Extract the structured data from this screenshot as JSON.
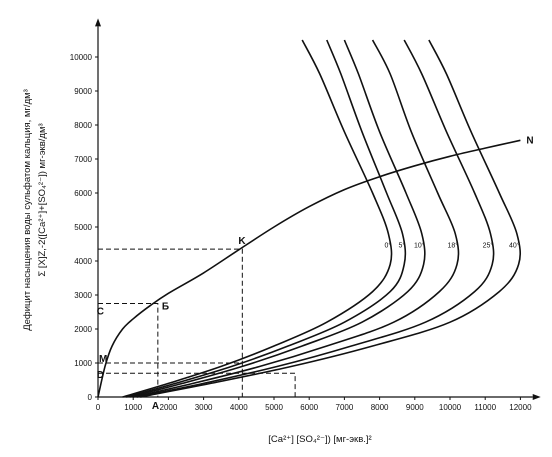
{
  "chart_data": {
    "type": "line",
    "title": "",
    "ylabel_line1": "Дефицит насыщения воды сульфатом кальция, мг/дм³",
    "ylabel_line2": "Σ [X]Z,-2([Ca²⁺]+[SO₄²⁻]) мг-экв/дм³",
    "xlabel": "[Ca²⁺] [SO₄²⁻]) [мг-экв.]²",
    "xlim": [
      0,
      12500
    ],
    "ylim": [
      0,
      11000
    ],
    "x_ticks": [
      "0",
      "1000",
      "2000",
      "3000",
      "4000",
      "5000",
      "6000",
      "7000",
      "8000",
      "9000",
      "10000",
      "11000",
      "12000"
    ],
    "y_ticks": [
      "0",
      "1000",
      "2000",
      "3000",
      "4000",
      "5000",
      "6000",
      "7000",
      "8000",
      "9000",
      "10000"
    ],
    "grid": false,
    "legend": "none",
    "saturation_curve": {
      "label": "N",
      "points": [
        [
          0,
          0
        ],
        [
          200,
          900
        ],
        [
          400,
          1500
        ],
        [
          700,
          2000
        ],
        [
          1000,
          2300
        ],
        [
          1500,
          2700
        ],
        [
          2000,
          3050
        ],
        [
          3000,
          3650
        ],
        [
          4000,
          4330
        ],
        [
          5000,
          5000
        ],
        [
          6000,
          5600
        ],
        [
          7000,
          6100
        ],
        [
          8000,
          6480
        ],
        [
          9000,
          6800
        ],
        [
          10000,
          7080
        ],
        [
          11000,
          7320
        ],
        [
          12000,
          7550
        ]
      ]
    },
    "isotherms": [
      {
        "label": "0°",
        "points": [
          [
            700,
            0
          ],
          [
            2000,
            400
          ],
          [
            3500,
            900
          ],
          [
            5000,
            1500
          ],
          [
            6500,
            2200
          ],
          [
            7800,
            3100
          ],
          [
            8300,
            3900
          ],
          [
            8250,
            4800
          ],
          [
            7800,
            6000
          ],
          [
            7000,
            7800
          ],
          [
            6300,
            9500
          ],
          [
            5800,
            10500
          ]
        ]
      },
      {
        "label": "5°",
        "points": [
          [
            800,
            0
          ],
          [
            2200,
            400
          ],
          [
            3800,
            900
          ],
          [
            5400,
            1500
          ],
          [
            7000,
            2200
          ],
          [
            8300,
            3100
          ],
          [
            8700,
            3900
          ],
          [
            8650,
            4800
          ],
          [
            8200,
            6000
          ],
          [
            7500,
            7800
          ],
          [
            6900,
            9500
          ],
          [
            6500,
            10500
          ]
        ]
      },
      {
        "label": "10°",
        "points": [
          [
            900,
            0
          ],
          [
            2400,
            400
          ],
          [
            4100,
            900
          ],
          [
            5800,
            1500
          ],
          [
            7500,
            2200
          ],
          [
            8800,
            3100
          ],
          [
            9250,
            3900
          ],
          [
            9200,
            4800
          ],
          [
            8750,
            6000
          ],
          [
            8000,
            7800
          ],
          [
            7400,
            9500
          ],
          [
            7000,
            10500
          ]
        ]
      },
      {
        "label": "18°",
        "points": [
          [
            1000,
            0
          ],
          [
            2700,
            400
          ],
          [
            4600,
            900
          ],
          [
            6500,
            1500
          ],
          [
            8400,
            2200
          ],
          [
            9700,
            3100
          ],
          [
            10200,
            3900
          ],
          [
            10150,
            4800
          ],
          [
            9650,
            6000
          ],
          [
            8900,
            7800
          ],
          [
            8300,
            9500
          ],
          [
            7800,
            10500
          ]
        ]
      },
      {
        "label": "25°",
        "points": [
          [
            1100,
            0
          ],
          [
            3000,
            400
          ],
          [
            5100,
            900
          ],
          [
            7200,
            1500
          ],
          [
            9300,
            2200
          ],
          [
            10700,
            3100
          ],
          [
            11200,
            3900
          ],
          [
            11150,
            4800
          ],
          [
            10700,
            6000
          ],
          [
            9900,
            7800
          ],
          [
            9200,
            9500
          ],
          [
            8700,
            10500
          ]
        ]
      },
      {
        "label": "40°",
        "points": [
          [
            1200,
            0
          ],
          [
            3200,
            400
          ],
          [
            5500,
            900
          ],
          [
            7800,
            1500
          ],
          [
            10000,
            2200
          ],
          [
            11400,
            3100
          ],
          [
            11950,
            3900
          ],
          [
            11900,
            4800
          ],
          [
            11400,
            6000
          ],
          [
            10600,
            7800
          ],
          [
            9900,
            9500
          ],
          [
            9400,
            10500
          ]
        ]
      }
    ],
    "temp_label_y": 4400,
    "annotations": [
      {
        "label": "K",
        "x": 4100,
        "y": 4350
      },
      {
        "label": "Б",
        "x": 1700,
        "y": 2750
      },
      {
        "label": "С",
        "x": 0,
        "y": 2750
      },
      {
        "label": "M",
        "x": 0,
        "y": 1000
      },
      {
        "label": "D",
        "x": 0,
        "y": 700
      },
      {
        "label": "A",
        "x": 1700,
        "y": 0
      }
    ],
    "dashed_lines": [
      {
        "points": [
          [
            0,
            4350
          ],
          [
            4100,
            4350
          ],
          [
            4100,
            0
          ]
        ]
      },
      {
        "points": [
          [
            0,
            2750
          ],
          [
            1700,
            2750
          ],
          [
            1700,
            0
          ]
        ]
      },
      {
        "points": [
          [
            0,
            1000
          ],
          [
            4100,
            1000
          ]
        ]
      },
      {
        "points": [
          [
            0,
            700
          ],
          [
            5600,
            700
          ],
          [
            5600,
            0
          ]
        ]
      }
    ]
  }
}
